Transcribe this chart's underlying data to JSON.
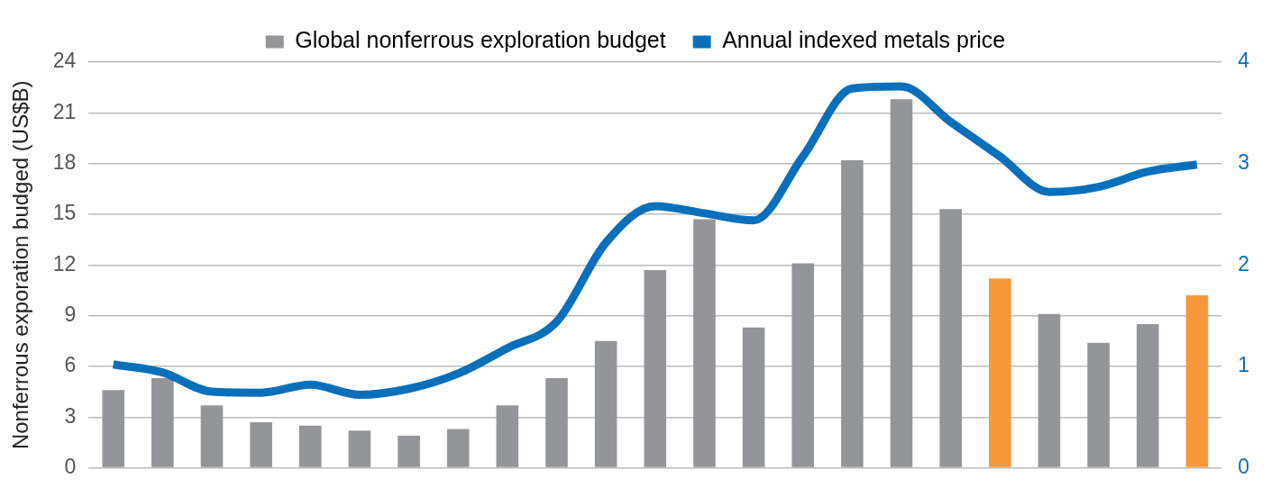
{
  "chart_data": {
    "type": "bar",
    "ylabel": "Nonferrous exporation budged (US$B)",
    "categories": [
      null,
      null,
      null,
      null,
      null,
      null,
      null,
      null,
      null,
      null,
      null,
      null,
      null,
      null,
      null,
      null,
      null,
      null,
      null,
      null,
      null,
      null,
      null
    ],
    "series": [
      {
        "name": "Global nonferrous exploration budget",
        "color": "#939598",
        "colors": [
          "#939598",
          "#939598",
          "#939598",
          "#939598",
          "#939598",
          "#939598",
          "#939598",
          "#939598",
          "#939598",
          "#939598",
          "#939598",
          "#939598",
          "#939598",
          "#939598",
          "#939598",
          "#939598",
          "#939598",
          "#939598",
          "#f7973a",
          "#939598",
          "#939598",
          "#939598",
          "#f7973a"
        ],
        "values": [
          4.6,
          5.3,
          3.7,
          2.7,
          2.5,
          2.2,
          1.9,
          2.3,
          3.7,
          5.3,
          7.5,
          11.7,
          14.7,
          8.3,
          12.1,
          18.2,
          21.8,
          15.3,
          11.2,
          9.1,
          7.4,
          8.5,
          10.2
        ]
      },
      {
        "name": "Annual indexed metals price",
        "type": "line",
        "axis": "y2",
        "color": "#0a6fba",
        "values": [
          1.02,
          0.94,
          0.75,
          0.74,
          0.82,
          0.72,
          0.78,
          0.93,
          1.18,
          1.44,
          2.22,
          2.58,
          2.51,
          2.44,
          3.07,
          3.74,
          3.76,
          3.41,
          3.07,
          2.72,
          2.77,
          2.92,
          2.99
        ]
      }
    ],
    "ylim": [
      0,
      24
    ],
    "yticks": [
      0,
      3,
      6,
      9,
      12,
      15,
      18,
      21,
      24
    ],
    "y2lim": [
      0,
      4
    ],
    "y2ticks": [
      0,
      1,
      2,
      3,
      4
    ],
    "grid": "y",
    "legend": "top",
    "marker": "none"
  }
}
